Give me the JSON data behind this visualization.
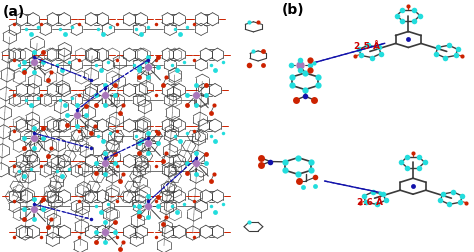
{
  "panel_a_label": "(a)",
  "panel_b_label": "(b)",
  "annotation_1": "2.5 Å",
  "annotation_2": "2.6 Å",
  "bg_color": "#ffffff",
  "label_fontsize": 10,
  "label_fontweight": "bold",
  "annotation_color": "#cc0000",
  "annotation_fontsize": 6.5,
  "dashed_color": "#3333bb",
  "gray_dark": "#3a3a3a",
  "gray_mid": "#666666",
  "gray_light": "#888888",
  "cyan_color": "#22dddd",
  "red_color": "#cc2200",
  "blue_color": "#1111aa",
  "purple_color": "#aa77bb",
  "brown_color": "#885544"
}
